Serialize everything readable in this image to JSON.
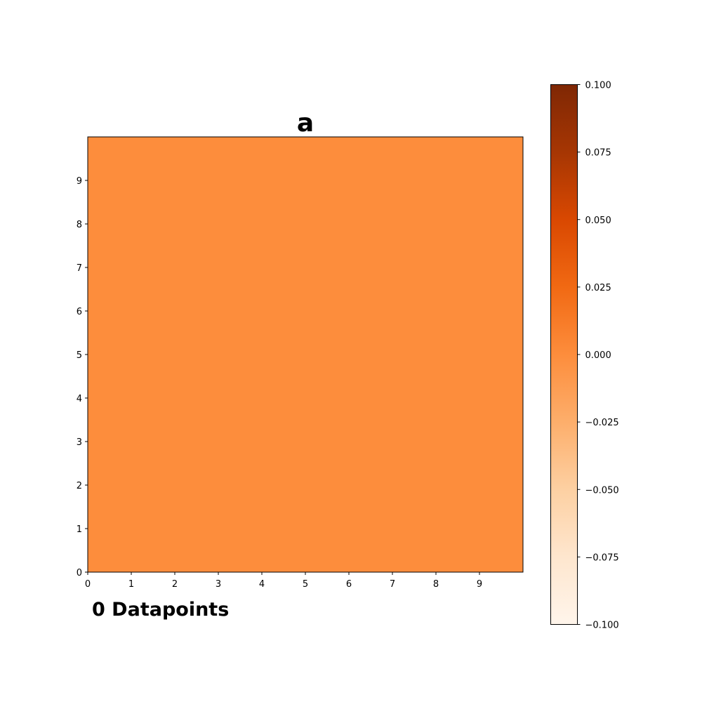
{
  "chart_data": {
    "type": "heatmap",
    "title": "a",
    "xlabel": "",
    "ylabel": "",
    "xlim": [
      0,
      10
    ],
    "ylim": [
      0,
      10
    ],
    "x_ticks": [
      "0",
      "1",
      "2",
      "3",
      "4",
      "5",
      "6",
      "7",
      "8",
      "9"
    ],
    "y_ticks": [
      "0",
      "1",
      "2",
      "3",
      "4",
      "5",
      "6",
      "7",
      "8",
      "9"
    ],
    "grid": false,
    "cell_value": 0.0,
    "cell_color": "#fd8d3c",
    "colorbar": {
      "colormap": "Oranges",
      "vmin": -0.1,
      "vmax": 0.1,
      "ticks": [
        {
          "value": 0.1,
          "label": "0.100"
        },
        {
          "value": 0.075,
          "label": "0.075"
        },
        {
          "value": 0.05,
          "label": "0.050"
        },
        {
          "value": 0.025,
          "label": "0.025"
        },
        {
          "value": 0.0,
          "label": "0.000"
        },
        {
          "value": -0.025,
          "label": "−0.025"
        },
        {
          "value": -0.05,
          "label": "−0.050"
        },
        {
          "value": -0.075,
          "label": "−0.075"
        },
        {
          "value": -0.1,
          "label": "−0.100"
        }
      ],
      "colors": [
        "#fff5eb",
        "#fee6ce",
        "#fdd0a2",
        "#fdae6b",
        "#fd8d3c",
        "#f16913",
        "#d94801",
        "#a63603",
        "#7f2704"
      ]
    },
    "annotation": "0 Datapoints"
  }
}
